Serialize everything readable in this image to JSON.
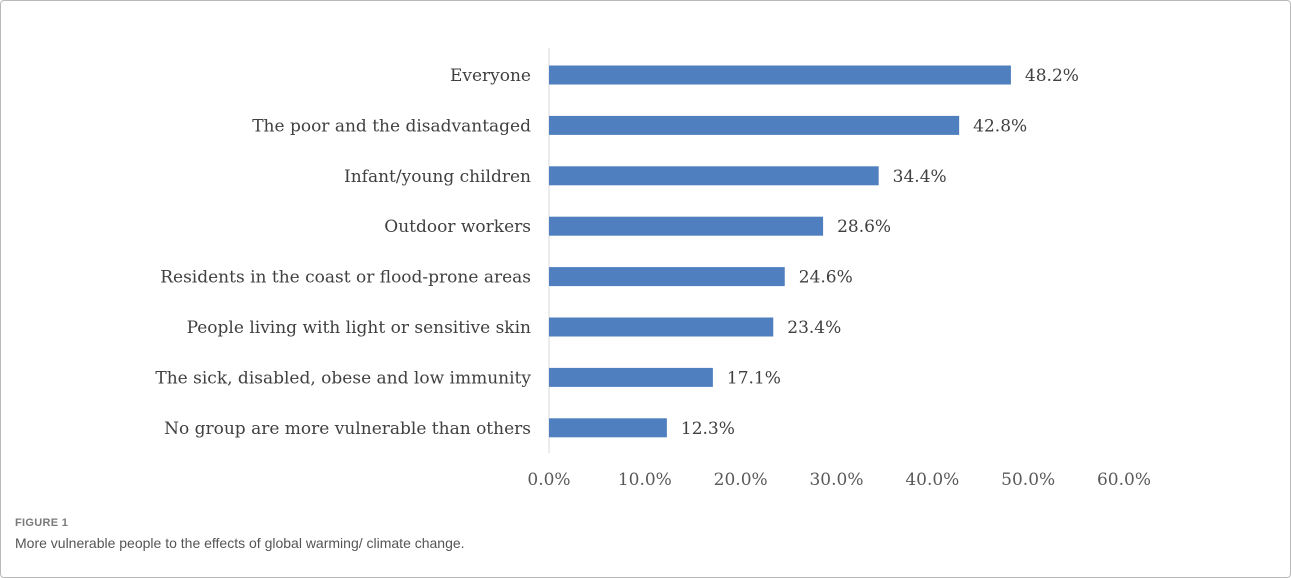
{
  "chart_data": {
    "type": "bar",
    "orientation": "horizontal",
    "categories": [
      "Everyone",
      "The poor and the disadvantaged",
      "Infant/young children",
      "Outdoor workers",
      "Residents in the coast or flood-prone areas",
      "People living with light or sensitive skin",
      "The sick, disabled, obese and low immunity",
      "No group are more vulnerable than others"
    ],
    "values": [
      48.2,
      42.8,
      34.4,
      28.6,
      24.6,
      23.4,
      17.1,
      12.3
    ],
    "value_labels": [
      "48.2%",
      "42.8%",
      "34.4%",
      "28.6%",
      "24.6%",
      "23.4%",
      "17.1%",
      "12.3%"
    ],
    "xlim": [
      0,
      60
    ],
    "x_ticks": [
      "0.0%",
      "10.0%",
      "20.0%",
      "30.0%",
      "40.0%",
      "50.0%",
      "60.0%"
    ],
    "bar_color": "#4f7fbf",
    "grid": false,
    "legend": "none",
    "title": "",
    "xlabel": "",
    "ylabel": ""
  },
  "caption": {
    "label": "FIGURE 1",
    "text": "More vulnerable people to the effects of global warming/ climate change."
  }
}
